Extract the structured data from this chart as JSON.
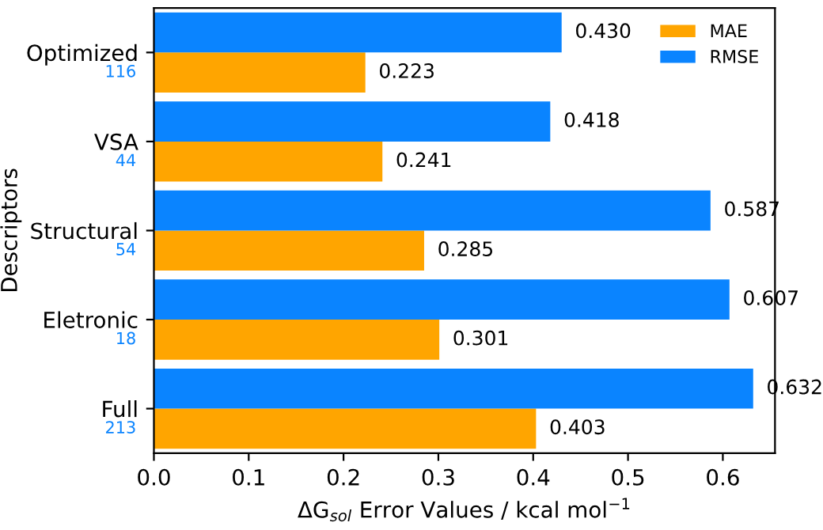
{
  "chart_data": {
    "type": "bar",
    "orientation": "horizontal",
    "xlabel": "ΔG$_{sol}$ Error Values / kcal mol$^{−1}$",
    "ylabel": "Descriptors",
    "categories": [
      "Optimized",
      "VSA",
      "Structural",
      "Eletronic",
      "Full"
    ],
    "series": [
      {
        "name": "MAE",
        "color": "#ffa500",
        "values": [
          0.223,
          0.241,
          0.285,
          0.301,
          0.403
        ],
        "value_labels": [
          "0.223",
          "0.241",
          "0.285",
          "0.301",
          "0.403"
        ]
      },
      {
        "name": "RMSE",
        "color": "#0a84ff",
        "values": [
          0.43,
          0.418,
          0.587,
          0.607,
          0.632
        ],
        "value_labels": [
          "0.430",
          "0.418",
          "0.587",
          "0.607",
          "0.632"
        ]
      }
    ],
    "annotations": [
      "116",
      "44",
      "54",
      "18",
      "213"
    ],
    "xlim": [
      0,
      0.655
    ],
    "xticks": [
      {
        "value": 0,
        "label": "0.0"
      },
      0.1,
      0.2,
      0.3,
      0.4,
      0.5,
      0.6
    ],
    "grid": false,
    "legend": "top right"
  }
}
